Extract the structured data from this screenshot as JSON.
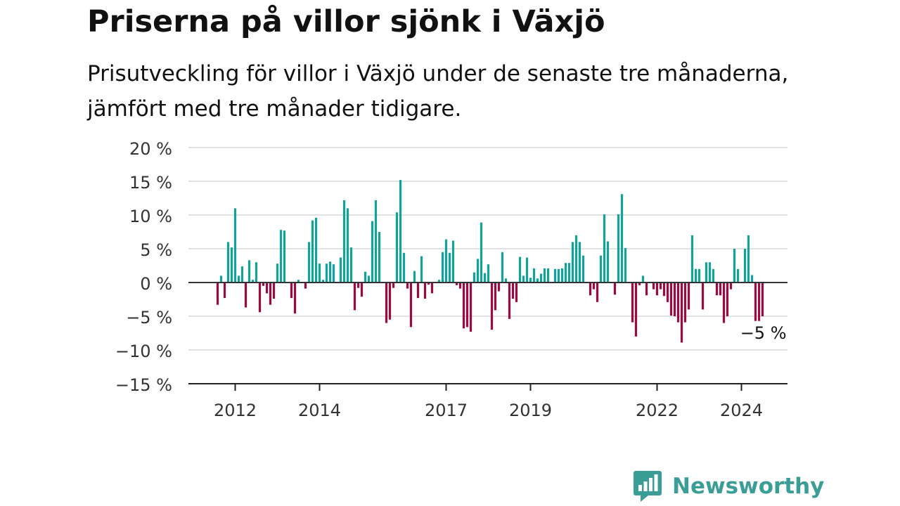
{
  "title": "Priserna på villor sjönk i Växjö",
  "subtitle": "Prisutveckling för villor i Växjö under de senaste tre månaderna, jämfört med tre månader tidigare.",
  "brand": {
    "name": "Newsworthy",
    "icon": "newsworthy-logo-icon",
    "color": "#3a9d96"
  },
  "colors": {
    "positive": "#13a297",
    "negative": "#9c0a3f",
    "grid": "#d9d9d9",
    "axis": "#222222"
  },
  "chart_data": {
    "type": "bar",
    "title": "Priserna på villor sjönk i Växjö",
    "xlabel": "",
    "ylabel": "",
    "ylim": [
      -15,
      20
    ],
    "y_ticks": [
      20,
      15,
      10,
      5,
      0,
      -5,
      -10,
      -15
    ],
    "y_tick_labels": [
      "20 %",
      "15 %",
      "10 %",
      "5 %",
      "0 %",
      "−5 %",
      "−10 %",
      "−15 %"
    ],
    "x_start": "2011-08",
    "x_ticks": [
      {
        "label": "2012",
        "date": "2012-01"
      },
      {
        "label": "2014",
        "date": "2014-01"
      },
      {
        "label": "2017",
        "date": "2017-01"
      },
      {
        "label": "2019",
        "date": "2019-01"
      },
      {
        "label": "2022",
        "date": "2022-01"
      },
      {
        "label": "2024",
        "date": "2024-01"
      }
    ],
    "values": [
      -3.3,
      1,
      -2.3,
      6,
      5.2,
      11,
      1,
      2.4,
      -3.7,
      3.3,
      0.4,
      3,
      -4.4,
      -0.5,
      -1.6,
      -3.3,
      -2.4,
      2.8,
      7.8,
      7.7,
      0,
      -2.3,
      -4.6,
      0.4,
      0,
      -0.9,
      6,
      9.2,
      9.6,
      2.8,
      0.4,
      2.8,
      3.1,
      2.7,
      0,
      3.7,
      12.2,
      11,
      5.2,
      -4.1,
      -0.8,
      -2.1,
      1.6,
      1,
      9.1,
      12.2,
      7.5,
      0,
      -6,
      -5.5,
      -0.8,
      10.4,
      15.2,
      4.4,
      -0.9,
      -6.6,
      1.7,
      -2.3,
      3.9,
      -2.4,
      -0.3,
      -1.6,
      0,
      0.4,
      4.5,
      6.4,
      4.4,
      6.2,
      -0.4,
      -0.9,
      -6.8,
      -6.6,
      -7.3,
      1.5,
      3.5,
      8.9,
      1.4,
      2.7,
      -7,
      -4.1,
      -1.3,
      4.5,
      0.6,
      -5.4,
      -2.4,
      -2.9,
      3.8,
      1,
      3.7,
      0.7,
      2.1,
      0.6,
      1.3,
      2.1,
      2.1,
      0,
      2,
      2,
      2.1,
      2.9,
      2.9,
      6,
      7,
      6,
      4,
      0,
      -1.9,
      -1,
      -2.9,
      4,
      10.1,
      6.1,
      0,
      -1.8,
      10.1,
      13.1,
      5.1,
      0,
      -5.9,
      -8,
      -0.4,
      1,
      -1.9,
      0,
      -1,
      -1.9,
      -1,
      -2,
      -2.9,
      -4.9,
      -5,
      -5.9,
      -8.9,
      -5.9,
      -4,
      7,
      2,
      2,
      -4,
      3,
      3,
      2,
      -1.9,
      -1.9,
      -6,
      -5,
      -1,
      5,
      2,
      0,
      5,
      7,
      1.1,
      -5.7,
      -5.7,
      -5
    ],
    "annotation": {
      "label": "−5 %"
    }
  }
}
